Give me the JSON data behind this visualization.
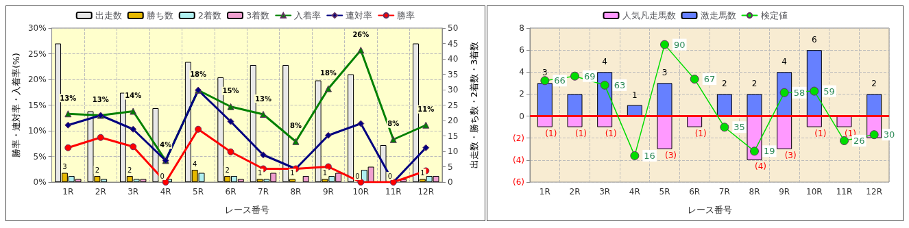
{
  "chart_data": [
    {
      "type": "bar",
      "xlabel": "レース番号",
      "ylabel": "勝率・連対率・入着率(%)",
      "y2label": "出走数・勝ち数・2着数・3着数",
      "categories": [
        "1R",
        "2R",
        "3R",
        "4R",
        "5R",
        "6R",
        "7R",
        "8R",
        "9R",
        "10R",
        "11R",
        "12R"
      ],
      "ylim": [
        0,
        30
      ],
      "yticks": [
        {
          "value": 0,
          "label": "0%"
        },
        {
          "value": 5,
          "label": "5%"
        },
        {
          "value": 10,
          "label": "10%"
        },
        {
          "value": 15,
          "label": "15%"
        },
        {
          "value": 20,
          "label": "20%"
        },
        {
          "value": 25,
          "label": "25%"
        },
        {
          "value": 30,
          "label": "30%"
        }
      ],
      "y2lim": [
        0,
        50
      ],
      "y2ticks": [
        0,
        5,
        10,
        15,
        20,
        25,
        30,
        35,
        40,
        45,
        50
      ],
      "grid": true,
      "legend": "top",
      "series": [
        {
          "name": "出走数",
          "axis": "y2",
          "color": "#e8e8e8",
          "values": [
            45,
            23,
            29,
            24,
            39,
            34,
            38,
            38,
            33,
            35,
            12,
            45
          ]
        },
        {
          "name": "勝ち数",
          "axis": "y2",
          "color": "#e6b800",
          "values": [
            3,
            2,
            2,
            0,
            4,
            2,
            1,
            1,
            1,
            0,
            0,
            1
          ],
          "value_labels": [
            "3",
            "2",
            "2",
            "0",
            "4",
            "2",
            "1",
            "1",
            "1",
            "0",
            "0",
            "1"
          ]
        },
        {
          "name": "2着数",
          "axis": "y2",
          "color": "#b0f0f0",
          "values": [
            2,
            1,
            1,
            1,
            3,
            2,
            1,
            0,
            2,
            4,
            0,
            2
          ]
        },
        {
          "name": "3着数",
          "axis": "y2",
          "color": "#f0a0d0",
          "values": [
            1,
            0,
            1,
            0,
            0,
            1,
            3,
            2,
            3,
            5,
            1,
            2
          ]
        },
        {
          "name": "入着率",
          "type": "line",
          "color": "#008000",
          "marker": "triangle",
          "values": [
            13.3,
            13.0,
            13.8,
            4.2,
            17.9,
            14.7,
            13.2,
            7.9,
            18.2,
            25.7,
            8.3,
            11.1
          ],
          "value_labels": [
            "13%",
            "13%",
            "14%",
            "4%",
            "18%",
            "15%",
            "13%",
            "8%",
            "18%",
            "26%",
            "8%",
            "11%"
          ]
        },
        {
          "name": "連対率",
          "type": "line",
          "color": "#000080",
          "marker": "diamond",
          "values": [
            11.1,
            13.0,
            10.3,
            4.2,
            17.9,
            11.8,
            5.3,
            2.6,
            9.1,
            11.4,
            0,
            6.7
          ]
        },
        {
          "name": "勝率",
          "type": "line",
          "color": "#ff0000",
          "marker": "circle",
          "values": [
            6.7,
            8.7,
            6.9,
            0,
            10.3,
            5.9,
            2.6,
            2.6,
            3.0,
            0,
            0,
            2.2
          ]
        }
      ]
    },
    {
      "type": "bar",
      "xlabel": "レース番号",
      "categories": [
        "1R",
        "2R",
        "3R",
        "4R",
        "5R",
        "6R",
        "7R",
        "8R",
        "9R",
        "10R",
        "11R",
        "12R"
      ],
      "stacked": true,
      "ylim": [
        -6,
        8
      ],
      "yticks": [
        {
          "value": -6,
          "label": "(6)"
        },
        {
          "value": -4,
          "label": "(4)"
        },
        {
          "value": -2,
          "label": "(2)"
        },
        0,
        2,
        4,
        6,
        8
      ],
      "y2lim": [
        -1.6,
        101
      ],
      "grid": true,
      "legend": "top",
      "ref_lines": [
        {
          "axis": "y",
          "value": 0,
          "color": "#ff0000"
        }
      ],
      "series": [
        {
          "name": "人気凡走馬数",
          "color": "#ff99ff",
          "values": [
            -1,
            -1,
            -1,
            0,
            -3,
            -1,
            0,
            -4,
            -3,
            -1,
            -1,
            -2
          ],
          "value_labels": [
            "(1)",
            "(1)",
            "(1)",
            null,
            "(3)",
            "(1)",
            null,
            "(4)",
            "(3)",
            "(1)",
            "(1)",
            null
          ]
        },
        {
          "name": "激走馬数",
          "color": "#6680ff",
          "values": [
            3,
            2,
            4,
            1,
            3,
            0,
            2,
            2,
            4,
            6,
            0,
            2
          ],
          "value_labels": [
            "3",
            null,
            "4",
            "1",
            "3",
            null,
            "2",
            "2",
            "4",
            "6",
            null,
            "2"
          ]
        },
        {
          "name": "検定値",
          "type": "line",
          "axis": "y2",
          "color": "#00dd00",
          "marker": "circle",
          "values": [
            66,
            69,
            63,
            16,
            90,
            67,
            35,
            19,
            58,
            59,
            26,
            30
          ],
          "value_labels": [
            "66",
            "69",
            "63",
            "16",
            "90",
            "67",
            "35",
            "19",
            "58",
            "59",
            "26",
            "30"
          ]
        }
      ]
    }
  ]
}
